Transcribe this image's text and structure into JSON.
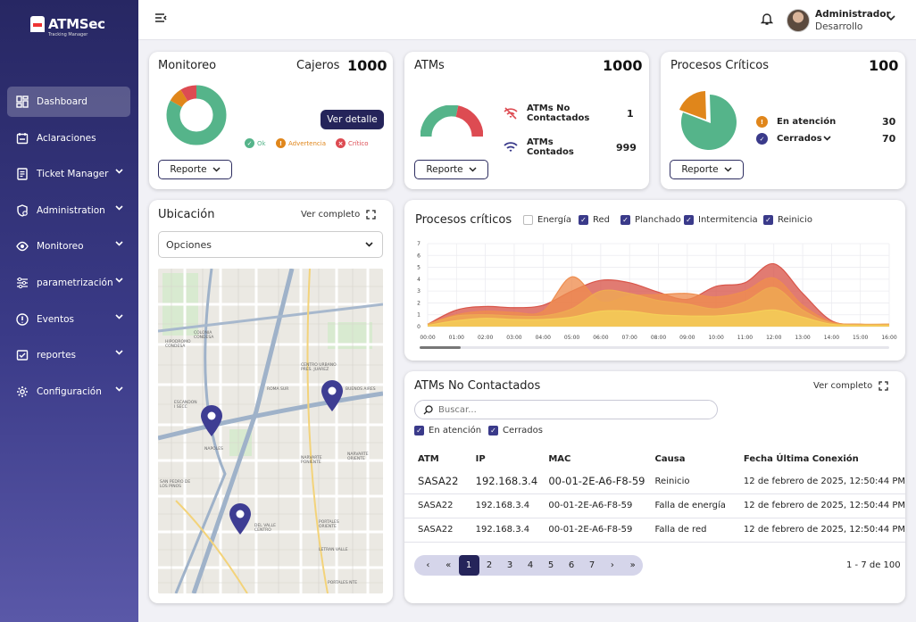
{
  "app": {
    "logo_text": "ATMSec",
    "logo_sub": "Tracking Manager"
  },
  "sidebar": {
    "items": [
      {
        "label": "Dashboard",
        "icon": "dashboard-icon",
        "active": true
      },
      {
        "label": "Aclaraciones",
        "icon": "calendar-icon"
      },
      {
        "label": "Ticket Manager",
        "icon": "ticket-icon",
        "expandable": true
      },
      {
        "label": "Administration",
        "icon": "admin-icon",
        "expandable": true
      },
      {
        "label": "Monitoreo",
        "icon": "eye-icon",
        "expandable": true
      },
      {
        "label": "parametrización",
        "icon": "sliders-icon",
        "expandable": true
      },
      {
        "label": "Eventos",
        "icon": "alert-icon",
        "expandable": true
      },
      {
        "label": "reportes",
        "icon": "report-icon",
        "expandable": true
      },
      {
        "label": "Configuración",
        "icon": "gear-icon",
        "expandable": true
      }
    ]
  },
  "user": {
    "name": "Administrador",
    "role": "Desarrollo"
  },
  "monitoreo": {
    "title": "Monitoreo",
    "cajeros_label": "Cajeros",
    "cajeros_value": "1000",
    "button": "Ver detalle",
    "report": "Reporte",
    "legend": [
      {
        "label": "Ok",
        "color": "#55b48a"
      },
      {
        "label": "Advertencia",
        "color": "#e0861b"
      },
      {
        "label": "Crítico",
        "color": "#dd4b52"
      }
    ],
    "donut": {
      "ok": 83,
      "advertencia": 8,
      "critico": 9
    }
  },
  "atms": {
    "title": "ATMs",
    "total": "1000",
    "report": "Reporte",
    "rows": [
      {
        "label": "ATMs No Contactados",
        "value": "1"
      },
      {
        "label": "ATMs Contados",
        "value": "999"
      }
    ],
    "gauge": {
      "ok": 60,
      "no_contactados": 40
    }
  },
  "procesos": {
    "title": "Procesos Críticos",
    "total": "100",
    "report": "Reporte",
    "rows": [
      {
        "label": "En atención",
        "value": "30"
      },
      {
        "label": "Cerrados",
        "value": "70"
      }
    ],
    "pie": {
      "en_atencion": 30,
      "cerrados": 70
    }
  },
  "ubicacion": {
    "title": "Ubicación",
    "full": "Ver completo",
    "select": "Opciones",
    "map_labels": [
      "COLONIA CONDESA",
      "HIPODROMO CONDESA",
      "ROMA SUR",
      "ESCANDON I SECC",
      "NAPOLES",
      "SAN PEDRO DE LOS PINOS",
      "NARVARTE PONIENTE",
      "NARVARTE ORIENTE",
      "DEL VALLE CENTRO",
      "BUENOS AIRES",
      "LETRAN VALLE",
      "PORTALES NTE",
      "CENTRO URBANO PRES. JUAREZ",
      "PORTALES ORIENTE"
    ]
  },
  "procesos_chart": {
    "title": "Procesos críticos",
    "filters": [
      {
        "label": "Energía",
        "checked": false
      },
      {
        "label": "Red",
        "checked": true
      },
      {
        "label": "Planchado",
        "checked": true
      },
      {
        "label": "Intermitencia",
        "checked": true
      },
      {
        "label": "Reinicio",
        "checked": true
      }
    ]
  },
  "chart_data": {
    "type": "area",
    "title": "Procesos críticos",
    "x": [
      "00:00",
      "01:00",
      "02:00",
      "03:00",
      "04:00",
      "05:00",
      "06:00",
      "07:00",
      "08:00",
      "09:00",
      "10:00",
      "11:00",
      "12:00",
      "13:00",
      "14:00",
      "15:00",
      "16:00"
    ],
    "y_ticks": [
      0,
      1,
      2,
      3,
      4,
      5,
      6,
      7
    ],
    "ylim": [
      0,
      7
    ],
    "series": [
      {
        "color": "#d9564a",
        "values": [
          0.2,
          1.4,
          1.7,
          1.6,
          1.8,
          3.0,
          3.9,
          3.7,
          2.9,
          2.3,
          3.4,
          3.7,
          5.3,
          2.8,
          0.5,
          0.2,
          0.2
        ]
      },
      {
        "color": "#ee8d4f",
        "values": [
          0.2,
          1.0,
          1.3,
          1.2,
          1.3,
          4.2,
          2.1,
          2.6,
          2.7,
          2.8,
          2.5,
          3.0,
          4.1,
          1.8,
          0.4,
          0.2,
          0.2
        ]
      },
      {
        "color": "#eeaa52",
        "values": [
          0.2,
          0.9,
          1.0,
          0.9,
          0.9,
          1.5,
          3.0,
          2.8,
          2.2,
          1.9,
          1.5,
          2.1,
          3.3,
          1.4,
          0.3,
          0.2,
          0.2
        ]
      },
      {
        "color": "#f5cf58",
        "values": [
          0.1,
          0.5,
          0.7,
          0.6,
          0.6,
          0.8,
          1.3,
          1.3,
          1.0,
          0.9,
          0.9,
          1.1,
          1.4,
          0.8,
          0.2,
          0.1,
          0.1
        ]
      }
    ]
  },
  "no_contactados": {
    "title": "ATMs No Contactados",
    "full": "Ver completo",
    "search_placeholder": "Buscar...",
    "filters": [
      {
        "label": "En atención",
        "checked": true
      },
      {
        "label": "Cerrados",
        "checked": true
      }
    ],
    "columns": [
      "ATM",
      "IP",
      "MAC",
      "Causa",
      "Fecha Última Conexión"
    ],
    "rows": [
      [
        "SASA22",
        "192.168.3.4",
        "00-01-2E-A6-F8-59",
        "Reinicio",
        "12 de febrero de 2025, 12:50:44 PM"
      ],
      [
        "SASA22",
        "192.168.3.4",
        "00-01-2E-A6-F8-59",
        "Falla de energía",
        "12 de febrero de 2025, 12:50:44 PM"
      ],
      [
        "SASA22",
        "192.168.3.4",
        "00-01-2E-A6-F8-59",
        "Falla de red",
        "12 de febrero de 2025, 12:50:44 PM"
      ]
    ],
    "pages": [
      "1",
      "2",
      "3",
      "4",
      "5",
      "6",
      "7"
    ],
    "summary": "1 - 7 de 100"
  }
}
